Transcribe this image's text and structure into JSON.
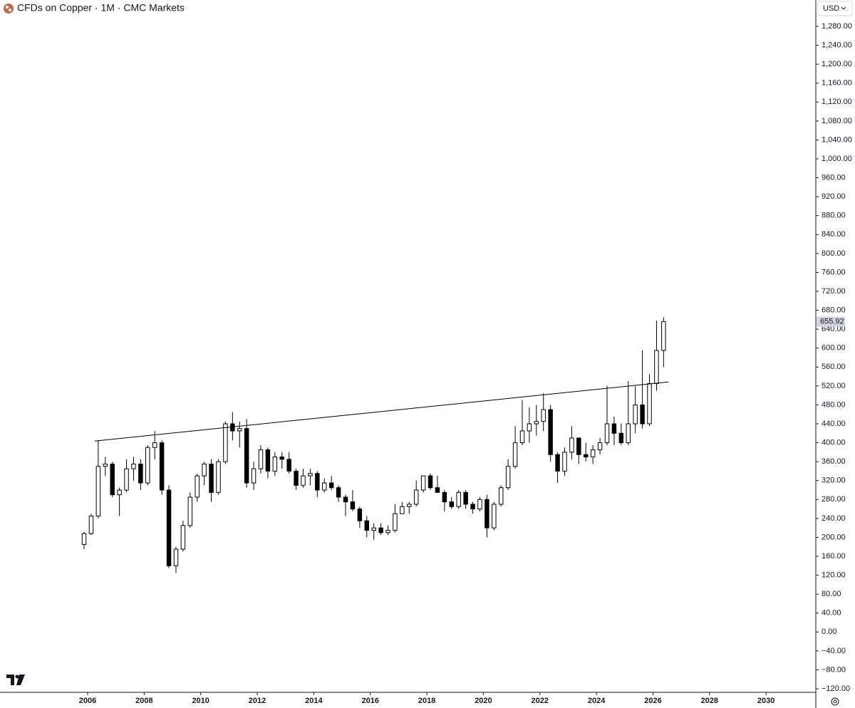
{
  "chart_data": {
    "type": "candlestick",
    "title": "CFDs on Copper · 1M · CMC Markets",
    "currency": "USD",
    "x": [
      2005.75,
      2006,
      2006.25,
      2006.5,
      2006.75,
      2007,
      2007.25,
      2007.5,
      2007.75,
      2008,
      2008.25,
      2008.5,
      2008.75,
      2009,
      2009.25,
      2009.5,
      2009.75,
      2010,
      2010.25,
      2010.5,
      2010.75,
      2011,
      2011.25,
      2011.5,
      2011.75,
      2012,
      2012.25,
      2012.5,
      2012.75,
      2013,
      2013.25,
      2013.5,
      2013.75,
      2014,
      2014.25,
      2014.5,
      2014.75,
      2015,
      2015.25,
      2015.5,
      2015.75,
      2016,
      2016.25,
      2016.5,
      2016.75,
      2017,
      2017.25,
      2017.5,
      2017.75,
      2018,
      2018.25,
      2018.5,
      2018.75,
      2019,
      2019.25,
      2019.5,
      2019.75,
      2020,
      2020.25,
      2020.5,
      2020.75,
      2021,
      2021.25,
      2021.5,
      2021.75,
      2022,
      2022.25,
      2022.5,
      2022.75,
      2023,
      2023.25,
      2023.5,
      2023.75,
      2024,
      2024.25,
      2024.5,
      2024.75,
      2025,
      2025.25,
      2025.5,
      2025.75,
      2026,
      2026.25
    ],
    "open": [
      185,
      208,
      245,
      350,
      355,
      290,
      300,
      345,
      355,
      315,
      390,
      400,
      300,
      140,
      175,
      225,
      285,
      330,
      355,
      295,
      360,
      440,
      425,
      430,
      315,
      345,
      385,
      340,
      370,
      365,
      340,
      310,
      330,
      335,
      300,
      315,
      305,
      285,
      275,
      260,
      235,
      215,
      220,
      210,
      215,
      250,
      265,
      270,
      300,
      330,
      305,
      295,
      275,
      265,
      295,
      270,
      260,
      280,
      220,
      270,
      305,
      350,
      400,
      425,
      440,
      445,
      470,
      375,
      340,
      380,
      410,
      375,
      370,
      385,
      400,
      440,
      420,
      400,
      440,
      480,
      440,
      525,
      595
    ],
    "high": [
      212,
      250,
      405,
      370,
      360,
      305,
      365,
      370,
      365,
      395,
      425,
      405,
      310,
      180,
      235,
      295,
      335,
      360,
      365,
      365,
      445,
      465,
      445,
      450,
      360,
      395,
      390,
      380,
      380,
      380,
      345,
      345,
      345,
      340,
      325,
      330,
      310,
      290,
      300,
      265,
      245,
      230,
      230,
      225,
      270,
      275,
      275,
      320,
      330,
      335,
      330,
      300,
      285,
      300,
      300,
      275,
      285,
      290,
      275,
      310,
      365,
      435,
      490,
      475,
      480,
      505,
      480,
      380,
      390,
      435,
      410,
      400,
      395,
      410,
      520,
      455,
      440,
      530,
      520,
      595,
      545,
      658,
      665
    ],
    "low": [
      175,
      205,
      240,
      330,
      285,
      245,
      295,
      320,
      300,
      310,
      365,
      290,
      135,
      125,
      170,
      220,
      275,
      310,
      275,
      290,
      355,
      405,
      390,
      305,
      300,
      335,
      325,
      330,
      345,
      335,
      300,
      305,
      310,
      285,
      295,
      300,
      275,
      245,
      255,
      220,
      200,
      195,
      205,
      205,
      210,
      250,
      250,
      265,
      295,
      300,
      295,
      255,
      260,
      260,
      260,
      250,
      255,
      200,
      215,
      265,
      300,
      345,
      395,
      400,
      415,
      425,
      360,
      315,
      330,
      365,
      355,
      360,
      355,
      375,
      395,
      395,
      395,
      395,
      420,
      430,
      435,
      510,
      560
    ],
    "close": [
      208,
      245,
      350,
      355,
      290,
      300,
      345,
      355,
      315,
      390,
      400,
      300,
      140,
      175,
      225,
      285,
      330,
      355,
      295,
      360,
      440,
      425,
      430,
      315,
      345,
      385,
      340,
      370,
      365,
      340,
      310,
      330,
      335,
      300,
      315,
      305,
      285,
      275,
      260,
      235,
      215,
      220,
      210,
      215,
      250,
      265,
      270,
      300,
      330,
      305,
      295,
      275,
      265,
      295,
      270,
      260,
      280,
      220,
      270,
      305,
      350,
      400,
      425,
      440,
      445,
      470,
      375,
      340,
      380,
      410,
      375,
      370,
      385,
      400,
      440,
      420,
      400,
      440,
      480,
      440,
      525,
      595,
      655.92
    ],
    "up_color": "#ffffff",
    "down_color": "#000000",
    "wick_color": "#000000",
    "trendline": {
      "x": [
        2006.25,
        2026.55
      ],
      "y": [
        403.5,
        528.5
      ],
      "color": "#000000"
    },
    "xlim": [
      2002.9,
      2031.76
    ],
    "xticks": [
      2006,
      2008,
      2010,
      2012,
      2014,
      2016,
      2018,
      2020,
      2022,
      2024,
      2026,
      2028,
      2030
    ],
    "ylim": [
      -127.5,
      1335.7
    ],
    "yticks": [
      {
        "value": -120,
        "label": "−120.00"
      },
      {
        "value": -80,
        "label": "−80.00"
      },
      {
        "value": -40,
        "label": "−40.00"
      },
      {
        "value": 0,
        "label": "0.00"
      },
      {
        "value": 40,
        "label": "40.00"
      },
      {
        "value": 80,
        "label": "80.00"
      },
      {
        "value": 120,
        "label": "120.00"
      },
      {
        "value": 160,
        "label": "160.00"
      },
      {
        "value": 200,
        "label": "200.00"
      },
      {
        "value": 240,
        "label": "240.00"
      },
      {
        "value": 280,
        "label": "280.00"
      },
      {
        "value": 320,
        "label": "320.00"
      },
      {
        "value": 360,
        "label": "360.00"
      },
      {
        "value": 400,
        "label": "400.00"
      },
      {
        "value": 440,
        "label": "440.00"
      },
      {
        "value": 480,
        "label": "480.00"
      },
      {
        "value": 520,
        "label": "520.00"
      },
      {
        "value": 560,
        "label": "560.00"
      },
      {
        "value": 600,
        "label": "600.00"
      },
      {
        "value": 640,
        "label": "640.00"
      },
      {
        "value": 680,
        "label": "680.00"
      },
      {
        "value": 720,
        "label": "720.00"
      },
      {
        "value": 760,
        "label": "760.00"
      },
      {
        "value": 800,
        "label": "800.00"
      },
      {
        "value": 840,
        "label": "840.00"
      },
      {
        "value": 880,
        "label": "880.00"
      },
      {
        "value": 920,
        "label": "920.00"
      },
      {
        "value": 960,
        "label": "960.00"
      },
      {
        "value": 1000,
        "label": "1,000.00"
      },
      {
        "value": 1040,
        "label": "1,040.00"
      },
      {
        "value": 1080,
        "label": "1,080.00"
      },
      {
        "value": 1120,
        "label": "1,120.00"
      },
      {
        "value": 1160,
        "label": "1,160.00"
      },
      {
        "value": 1200,
        "label": "1,200.00"
      },
      {
        "value": 1240,
        "label": "1,240.00"
      },
      {
        "value": 1280,
        "label": "1,280.00"
      }
    ],
    "grid": false
  }
}
